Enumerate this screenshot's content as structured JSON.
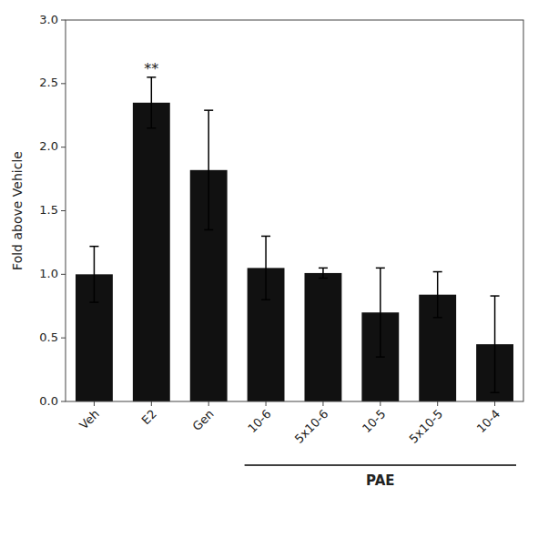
{
  "chart_data": {
    "type": "bar",
    "categories": [
      "Veh",
      "E2",
      "Gen",
      "10-6",
      "5x10-6",
      "10-5",
      "5x10-5",
      "10-4"
    ],
    "values": [
      1.0,
      2.35,
      1.82,
      1.05,
      1.01,
      0.7,
      0.84,
      0.45
    ],
    "errors": [
      0.22,
      0.2,
      0.47,
      0.25,
      0.04,
      0.35,
      0.18,
      0.38
    ],
    "color": "#111111",
    "ylabel": "Fold above Vehicle",
    "ylim": [
      0.0,
      3.0
    ],
    "yticks": [
      {
        "value": 0.0,
        "label": "0.0"
      },
      0.5,
      {
        "value": 1.0,
        "label": "1.0"
      },
      1.5,
      {
        "value": 2.0,
        "label": "2.0"
      },
      2.5,
      {
        "value": 3.0,
        "label": "3.0"
      }
    ],
    "annotations": [
      {
        "text": "**",
        "category": "E2"
      },
      {
        "text": "PAE",
        "from": "10-6",
        "to": "10-4"
      }
    ]
  }
}
